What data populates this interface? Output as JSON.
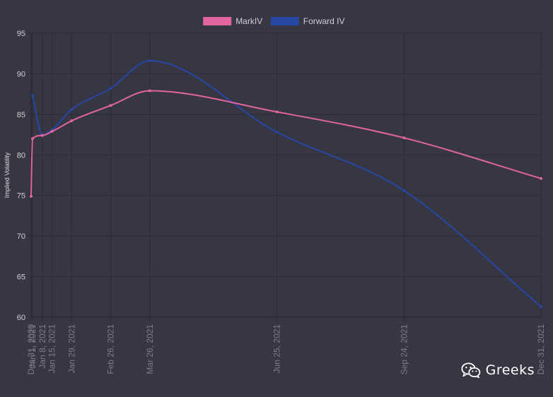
{
  "chart_data": {
    "type": "line",
    "ylabel": "Implied Volatility",
    "xlabel": "",
    "ylim": [
      60,
      95
    ],
    "yticks": [
      60,
      65,
      70,
      75,
      80,
      85,
      90,
      95
    ],
    "grid": true,
    "legend_position": "top-center",
    "categories": [
      "Dec 31, 2020",
      "Jan 1, 2021",
      "Jan 8, 2021",
      "Jan 15, 2021",
      "Jan 29, 2021",
      "Feb 26, 2021",
      "Mar 26, 2021",
      "Jun 25, 2021",
      "Sep 24, 2021",
      "Dec 31, 2021"
    ],
    "category_days": [
      0,
      1,
      8,
      15,
      29,
      57,
      85,
      176,
      267,
      365
    ],
    "series": [
      {
        "name": "MarkIV",
        "color": "#e2649f",
        "values": [
          74.9,
          82.0,
          82.4,
          82.9,
          84.2,
          86.1,
          87.9,
          85.3,
          82.1,
          77.1
        ]
      },
      {
        "name": "Forward IV",
        "color": "#2647a3",
        "values": [
          null,
          87.3,
          82.5,
          83.1,
          85.6,
          88.2,
          91.6,
          82.8,
          75.6,
          61.3
        ]
      }
    ]
  },
  "watermark": {
    "icon": "wechat-icon",
    "text": "Greeks"
  }
}
